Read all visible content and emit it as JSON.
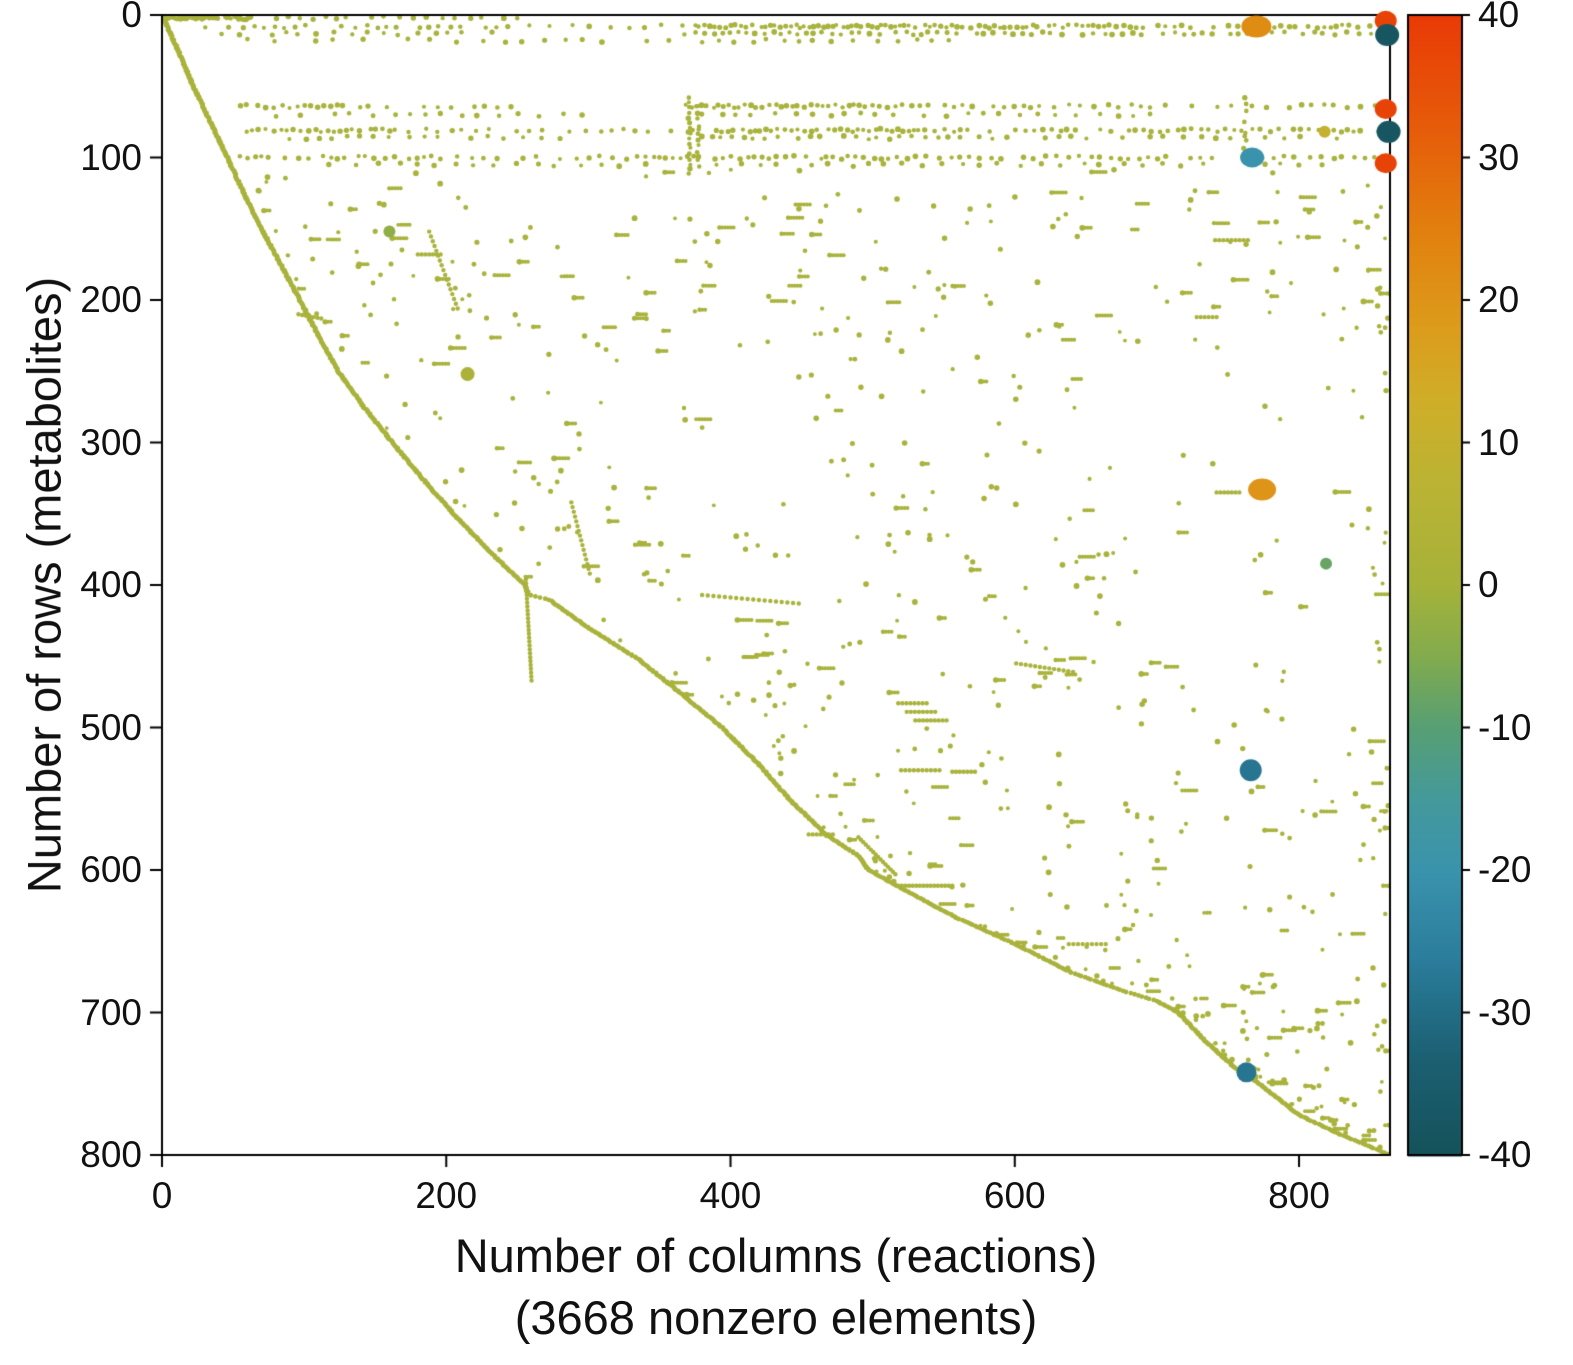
{
  "figure": {
    "background": "#ffffff"
  },
  "chart_data": {
    "type": "scatter",
    "title": "",
    "xlabel": "Number of columns (reactions)",
    "xlabel_note": "(3668 nonzero elements)",
    "ylabel": "Number of rows (metabolites)",
    "nonzero_elements": 3668,
    "xlim": [
      0,
      864
    ],
    "ylim": [
      0,
      800
    ],
    "y_reversed": true,
    "grid": false,
    "x_ticks": [
      "0",
      "200",
      "400",
      "600",
      "800"
    ],
    "x_tick_values": [
      0,
      200,
      400,
      600,
      800
    ],
    "y_ticks": [
      "0",
      "100",
      "200",
      "300",
      "400",
      "500",
      "600",
      "700",
      "800"
    ],
    "y_tick_values": [
      0,
      100,
      200,
      300,
      400,
      500,
      600,
      700,
      800
    ],
    "marker_color": "#a9b33c",
    "axis_color": "#000000",
    "colorbar": {
      "min": -40,
      "max": 40,
      "ticks": [
        "40",
        "30",
        "20",
        "10",
        "0",
        "-10",
        "-20",
        "-30",
        "-40"
      ],
      "tick_values": [
        40,
        30,
        20,
        10,
        0,
        -10,
        -20,
        -30,
        -40
      ],
      "position": "right",
      "stops": [
        [
          -40,
          "#15525a"
        ],
        [
          -33,
          "#1c6073"
        ],
        [
          -26,
          "#2b7e9d"
        ],
        [
          -20,
          "#3a93ac"
        ],
        [
          -15,
          "#44999b"
        ],
        [
          -10,
          "#579f74"
        ],
        [
          -5,
          "#82ab4e"
        ],
        [
          0,
          "#a6b239"
        ],
        [
          7,
          "#bab334"
        ],
        [
          13,
          "#cfae28"
        ],
        [
          18,
          "#dc9c1c"
        ],
        [
          24,
          "#e1840f"
        ],
        [
          32,
          "#e65c0a"
        ],
        [
          40,
          "#e93a06"
        ]
      ]
    },
    "diagonal": [
      [
        0,
        0
      ],
      [
        10,
        22
      ],
      [
        22,
        50
      ],
      [
        34,
        75
      ],
      [
        46,
        100
      ],
      [
        58,
        126
      ],
      [
        70,
        150
      ],
      [
        84,
        176
      ],
      [
        97,
        200
      ],
      [
        110,
        225
      ],
      [
        124,
        250
      ],
      [
        142,
        275
      ],
      [
        162,
        300
      ],
      [
        183,
        325
      ],
      [
        205,
        350
      ],
      [
        229,
        375
      ],
      [
        255,
        400
      ],
      [
        258,
        407
      ],
      [
        272,
        410
      ],
      [
        300,
        430
      ],
      [
        335,
        452
      ],
      [
        360,
        472
      ],
      [
        394,
        500
      ],
      [
        420,
        526
      ],
      [
        441,
        550
      ],
      [
        468,
        576
      ],
      [
        490,
        590
      ],
      [
        497,
        600
      ],
      [
        530,
        618
      ],
      [
        560,
        634
      ],
      [
        596,
        650
      ],
      [
        640,
        672
      ],
      [
        680,
        686
      ],
      [
        700,
        692
      ],
      [
        715,
        700
      ],
      [
        734,
        720
      ],
      [
        754,
        738
      ],
      [
        772,
        750
      ],
      [
        800,
        772
      ],
      [
        830,
        786
      ],
      [
        864,
        800
      ]
    ],
    "bands": [
      [
        2,
        [
          [
            0,
            65,
            1.2
          ],
          [
            70,
            255,
            9
          ]
        ]
      ],
      [
        8,
        [
          [
            30,
            250,
            8
          ],
          [
            258,
            378,
            14
          ],
          [
            366,
            620,
            3.5
          ],
          [
            624,
            862,
            5
          ]
        ]
      ],
      [
        13,
        [
          [
            42,
            240,
            11
          ],
          [
            368,
            600,
            6
          ],
          [
            606,
            862,
            7
          ]
        ]
      ],
      [
        18,
        [
          [
            60,
            360,
            16
          ],
          [
            380,
            560,
            12
          ]
        ]
      ],
      [
        64,
        [
          [
            55,
            150,
            5
          ],
          [
            158,
            250,
            9
          ],
          [
            368,
            500,
            4
          ],
          [
            505,
            620,
            6
          ],
          [
            628,
            862,
            8
          ]
        ]
      ],
      [
        70,
        [
          [
            80,
            300,
            14
          ],
          [
            380,
            700,
            13
          ]
        ]
      ],
      [
        81,
        [
          [
            60,
            180,
            4.5
          ],
          [
            186,
            368,
            9
          ],
          [
            370,
            540,
            4
          ],
          [
            544,
            862,
            6
          ]
        ]
      ],
      [
        86,
        [
          [
            90,
            280,
            11
          ],
          [
            380,
            640,
            8
          ],
          [
            650,
            830,
            11
          ]
        ]
      ],
      [
        100,
        [
          [
            55,
            190,
            5
          ],
          [
            196,
            330,
            9
          ],
          [
            334,
            520,
            5
          ],
          [
            524,
            862,
            7
          ]
        ]
      ],
      [
        105,
        [
          [
            100,
            360,
            15
          ],
          [
            390,
            820,
            14
          ]
        ]
      ]
    ],
    "vbars": [
      [
        371,
        58,
        112,
        3.5
      ],
      [
        377,
        64,
        108,
        4.5
      ],
      [
        762,
        58,
        100,
        6
      ]
    ],
    "segments": [
      [
        256,
        396,
        260,
        467,
        26
      ],
      [
        490,
        577,
        516,
        603,
        15
      ],
      [
        518,
        611,
        556,
        611,
        15
      ],
      [
        380,
        407,
        448,
        413,
        17
      ],
      [
        518,
        483,
        538,
        483,
        7
      ],
      [
        524,
        489,
        544,
        489,
        7
      ],
      [
        530,
        495,
        552,
        495,
        8
      ],
      [
        520,
        530,
        547,
        530,
        9
      ],
      [
        556,
        531,
        572,
        531,
        6
      ],
      [
        455,
        575,
        472,
        575,
        6
      ],
      [
        601,
        455,
        641,
        461,
        12
      ],
      [
        288,
        342,
        301,
        392,
        15
      ],
      [
        188,
        152,
        208,
        206,
        16
      ],
      [
        742,
        335,
        758,
        335,
        6
      ],
      [
        741,
        158,
        764,
        158,
        8
      ],
      [
        728,
        212,
        742,
        212,
        5
      ],
      [
        638,
        652,
        664,
        652,
        8
      ],
      [
        180,
        168,
        196,
        168,
        6
      ],
      [
        96,
        210,
        112,
        213,
        6
      ]
    ],
    "scatter_specs": [
      {
        "seed": 7,
        "count": 430,
        "row_min": 108,
        "row_max": 600,
        "col_bias": 1.35
      },
      {
        "seed": 11,
        "count": 150,
        "row_min": 600,
        "row_max": 795,
        "col_bias": 1.9
      },
      {
        "seed": 23,
        "count": 120,
        "row_min": 122,
        "row_max": 235,
        "col_bias": 1.0
      },
      {
        "seed": 31,
        "count": 42,
        "row_min": 110,
        "row_max": 795,
        "col_min": 848,
        "col_max": 863,
        "col_bias": 1
      }
    ],
    "markers": [
      [
        770,
        8,
        22,
        15,
        11
      ],
      [
        861,
        4,
        38,
        11,
        10
      ],
      [
        862,
        14,
        -38,
        12,
        11
      ],
      [
        861,
        66,
        38,
        11,
        10
      ],
      [
        863,
        82,
        -38,
        12,
        11
      ],
      [
        861,
        104,
        38,
        11,
        10
      ],
      [
        767,
        100,
        -20,
        12,
        10
      ],
      [
        818,
        82,
        10,
        6,
        6
      ],
      [
        774,
        333,
        20,
        14,
        11
      ],
      [
        819,
        385,
        -8,
        6,
        6
      ],
      [
        766,
        530,
        -28,
        11,
        11
      ],
      [
        763,
        742,
        -28,
        10,
        10
      ],
      [
        215,
        252,
        2,
        7,
        7
      ],
      [
        160,
        152,
        -3,
        6,
        6
      ]
    ]
  }
}
